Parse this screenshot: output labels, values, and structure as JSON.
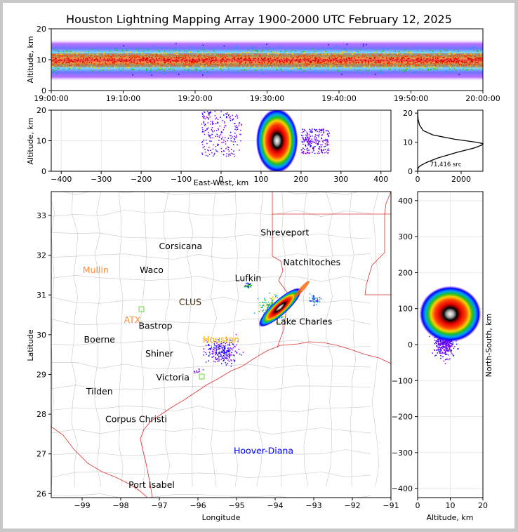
{
  "title": "Houston Lightning Mapping Array 1900-2000 UTC February 12, 2025",
  "chart_data": [
    {
      "panel": "altitude-time",
      "type": "scatter",
      "title": "",
      "xlabel": "",
      "ylabel": "Altitude, km",
      "xlim": [
        "19:00:00",
        "20:00:00"
      ],
      "ylim": [
        0,
        20
      ],
      "x_ticks": [
        "19:00:00",
        "19:10:00",
        "19:20:00",
        "19:30:00",
        "19:40:00",
        "19:50:00",
        "20:00:00"
      ],
      "y_ticks": [
        "0",
        "10",
        "20"
      ],
      "density_band": {
        "center_km": 10,
        "core_half_width_km": 2,
        "outer_half_width_km": 7
      }
    },
    {
      "panel": "altitude-eastwest",
      "type": "scatter",
      "xlabel": "East-West, km",
      "ylabel": "Altitude, km",
      "xlim": [
        -425,
        425
      ],
      "ylim": [
        0,
        20
      ],
      "x_ticks": [
        "−400",
        "−300",
        "−200",
        "−100",
        "0",
        "100",
        "200",
        "300",
        "400"
      ],
      "y_ticks": [
        "0",
        "10",
        "20"
      ],
      "core": {
        "x_km": 140,
        "alt_km": 10
      },
      "scatter_regions": [
        {
          "x_km": [
            -50,
            50
          ],
          "alt_km": [
            5,
            20
          ]
        },
        {
          "x_km": [
            200,
            270
          ],
          "alt_km": [
            6,
            14
          ]
        }
      ]
    },
    {
      "panel": "altitude-histogram",
      "type": "line",
      "xlabel": "",
      "ylabel": "",
      "xlim": [
        0,
        3000
      ],
      "ylim": [
        0,
        21
      ],
      "x_ticks": [
        "0",
        "2000"
      ],
      "y_ticks": [
        "0",
        "10",
        "20"
      ],
      "annotation": "71,416 src",
      "x": [
        0,
        20,
        60,
        150,
        400,
        900,
        1800,
        2600,
        2950,
        3000,
        2700,
        1700,
        700,
        250,
        80,
        20,
        0
      ],
      "y": [
        0,
        1,
        1.5,
        2,
        3,
        4.5,
        6.5,
        8,
        9,
        9.5,
        10,
        11,
        12.5,
        14,
        16,
        18,
        21
      ]
    },
    {
      "panel": "plan-view",
      "type": "scatter",
      "xlabel": "Longitude",
      "ylabel": "Latitude",
      "xlim": [
        -99.8,
        -91
      ],
      "ylim": [
        25.9,
        33.6
      ],
      "x_ticks": [
        "−99",
        "−98",
        "−97",
        "−96",
        "−95",
        "−94",
        "−93",
        "−92",
        "−91"
      ],
      "y_ticks": [
        "26",
        "27",
        "28",
        "29",
        "30",
        "31",
        "32",
        "33"
      ],
      "core": {
        "lon": -93.95,
        "lat": 30.55
      },
      "places": [
        {
          "name": "Shreveport",
          "lon": -93.75,
          "lat": 32.5,
          "color": "#000000"
        },
        {
          "name": "Corsicana",
          "lon": -96.45,
          "lat": 32.15,
          "color": "#000000"
        },
        {
          "name": "Mullin",
          "lon": -98.65,
          "lat": 31.55,
          "color": "#ff8c3c"
        },
        {
          "name": "Waco",
          "lon": -97.2,
          "lat": 31.55,
          "color": "#000000"
        },
        {
          "name": "Natchitoches",
          "lon": -93.05,
          "lat": 31.75,
          "color": "#000000"
        },
        {
          "name": "Lufkin",
          "lon": -94.7,
          "lat": 31.35,
          "color": "#000000"
        },
        {
          "name": "CLUS",
          "lon": -96.2,
          "lat": 30.75,
          "color": "#4a2a0a"
        },
        {
          "name": "ATX",
          "lon": -97.7,
          "lat": 30.3,
          "color": "#ff8c3c"
        },
        {
          "name": "Bastrop",
          "lon": -97.1,
          "lat": 30.15,
          "color": "#000000"
        },
        {
          "name": "Lake Charles",
          "lon": -93.25,
          "lat": 30.25,
          "color": "#000000"
        },
        {
          "name": "Boerne",
          "lon": -98.55,
          "lat": 29.8,
          "color": "#000000"
        },
        {
          "name": "Houston",
          "lon": -95.4,
          "lat": 29.8,
          "color": "#ffa500"
        },
        {
          "name": "Shiner",
          "lon": -97.0,
          "lat": 29.45,
          "color": "#000000"
        },
        {
          "name": "Victoria",
          "lon": -96.65,
          "lat": 28.85,
          "color": "#000000"
        },
        {
          "name": "Tilden",
          "lon": -98.55,
          "lat": 28.5,
          "color": "#000000"
        },
        {
          "name": "Corpus Christi",
          "lon": -97.6,
          "lat": 27.8,
          "color": "#000000"
        },
        {
          "name": "Hoover-Diana",
          "lon": -94.3,
          "lat": 27.0,
          "color": "#0000ff"
        },
        {
          "name": "Port Isabel",
          "lon": -97.2,
          "lat": 26.15,
          "color": "#000000"
        }
      ]
    },
    {
      "panel": "northsouth-altitude",
      "type": "scatter",
      "xlabel": "Altitude, km",
      "ylabel": "North-South, km",
      "xlim": [
        0,
        20
      ],
      "ylim": [
        -425,
        425
      ],
      "x_ticks": [
        "0",
        "10",
        "20"
      ],
      "y_ticks": [
        "−400",
        "−300",
        "−200",
        "−100",
        "0",
        "100",
        "200",
        "300",
        "400"
      ],
      "core": {
        "alt_km": 10,
        "y_km": 85
      }
    }
  ]
}
